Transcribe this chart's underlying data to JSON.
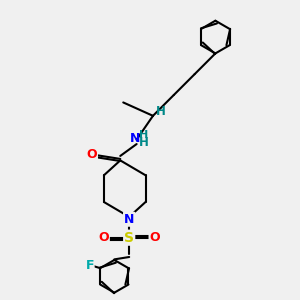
{
  "bg_color": "#f0f0f0",
  "bond_color": "#000000",
  "bond_width": 1.5,
  "atom_colors": {
    "O": "#ff0000",
    "N": "#0000ff",
    "F": "#00aaaa",
    "S": "#cccc00",
    "H": "#008888",
    "C": "#000000"
  },
  "title": "",
  "figsize": [
    3.0,
    3.0
  ],
  "dpi": 100
}
